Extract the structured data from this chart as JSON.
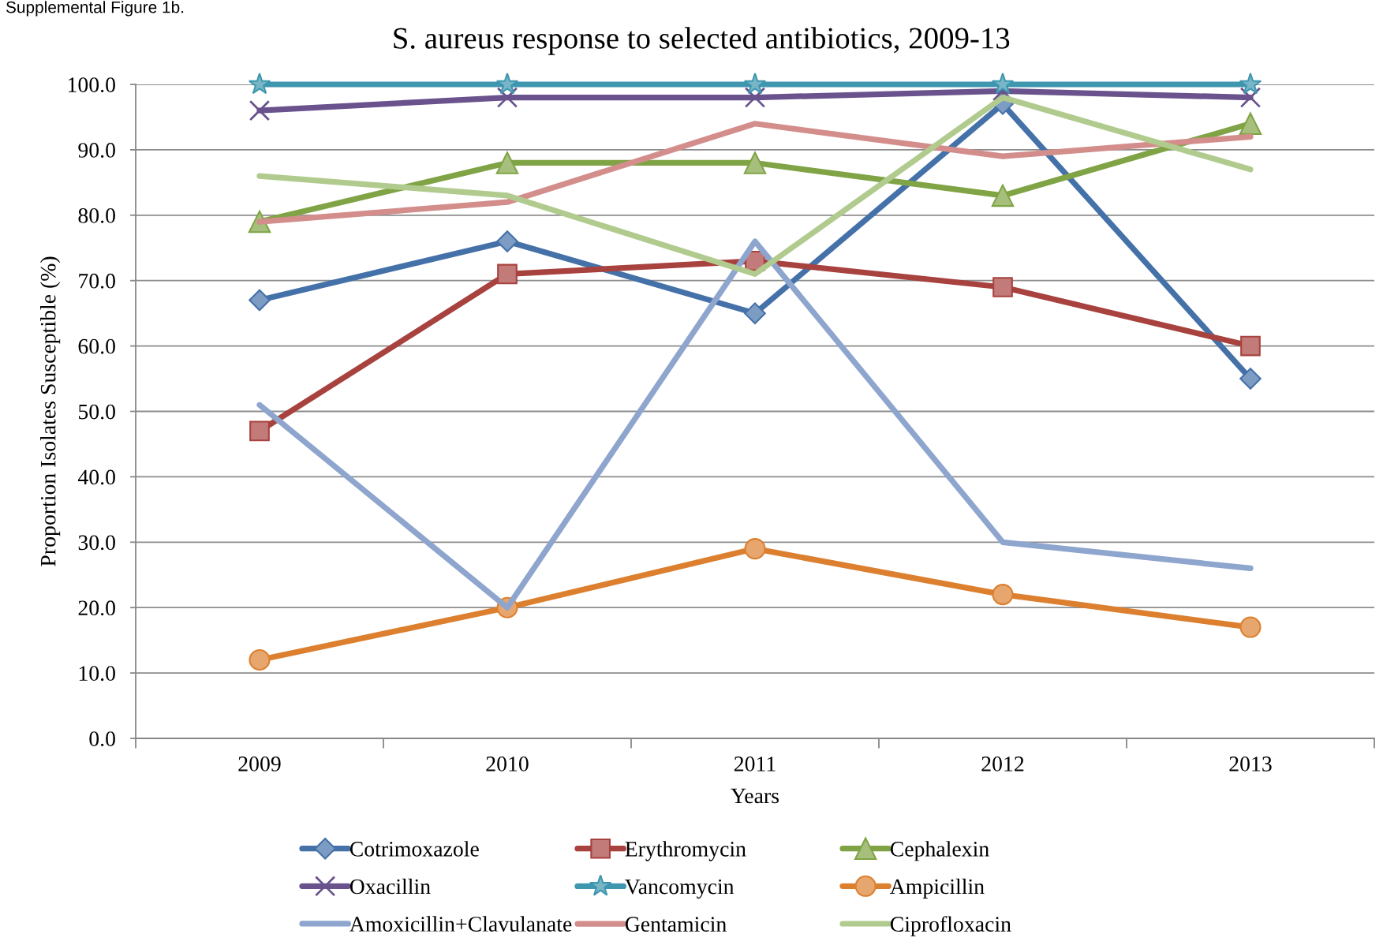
{
  "chart_data": {
    "type": "line",
    "title": "S. aureus response to selected antibiotics, 2009-13",
    "xlabel": "Years",
    "ylabel": "Proportion Isolates Susceptible (%)",
    "annotations": [
      "Supplemental Figure 1b."
    ],
    "categories": [
      "2009",
      "2010",
      "2011",
      "2012",
      "2013"
    ],
    "ylim": [
      0,
      100
    ],
    "yticks": [
      {
        "value": 0,
        "label": "0.0"
      },
      {
        "value": 10,
        "label": "10.0"
      },
      {
        "value": 20,
        "label": "20.0"
      },
      {
        "value": 30,
        "label": "30.0"
      },
      {
        "value": 40,
        "label": "40.0"
      },
      {
        "value": 50,
        "label": "50.0"
      },
      {
        "value": 60,
        "label": "60.0"
      },
      {
        "value": 70,
        "label": "70.0"
      },
      {
        "value": 80,
        "label": "80.0"
      },
      {
        "value": 90,
        "label": "90.0"
      },
      {
        "value": 100,
        "label": "100.0"
      }
    ],
    "grid": "y",
    "legend": "bottom",
    "line_style": "solid",
    "series": [
      {
        "name": "Cotrimoxazole",
        "color": "#4571a9",
        "marker": "diamond",
        "values": [
          67,
          76,
          65,
          97,
          55
        ]
      },
      {
        "name": "Erythromycin",
        "color": "#a8423f",
        "marker": "square",
        "values": [
          47,
          71,
          73,
          69,
          60
        ]
      },
      {
        "name": "Cephalexin",
        "color": "#80a445",
        "marker": "triangle",
        "values": [
          79,
          88,
          88,
          83,
          94
        ]
      },
      {
        "name": "Oxacillin",
        "color": "#6a528d",
        "marker": "cross",
        "values": [
          96,
          98,
          98,
          99,
          98
        ]
      },
      {
        "name": "Vancomycin",
        "color": "#3e96af",
        "marker": "star",
        "values": [
          100,
          100,
          100,
          100,
          100
        ]
      },
      {
        "name": "Ampicillin",
        "color": "#dc8030",
        "marker": "circle",
        "values": [
          12,
          20,
          29,
          22,
          17
        ]
      },
      {
        "name": "Amoxicillin+Clavulanate",
        "color": "#8ea5ce",
        "marker": "none",
        "values": [
          51,
          20,
          76,
          30,
          26
        ]
      },
      {
        "name": "Gentamicin",
        "color": "#d38e8c",
        "marker": "none",
        "values": [
          79,
          82,
          94,
          89,
          92
        ]
      },
      {
        "name": "Ciprofloxacin",
        "color": "#b1cb8e",
        "marker": "none",
        "values": [
          86,
          83,
          71,
          98,
          87
        ]
      }
    ]
  }
}
